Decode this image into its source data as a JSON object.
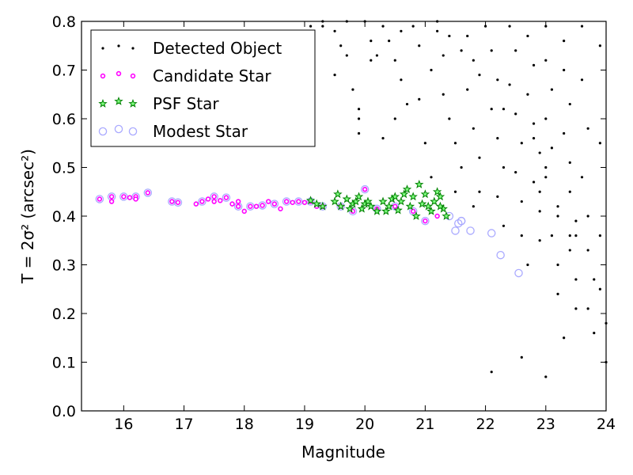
{
  "chart_data": {
    "type": "scatter",
    "xlabel": "Magnitude",
    "ylabel": "T = 2σ² (arcsec²)",
    "xlim": [
      15.3,
      24
    ],
    "ylim": [
      0.0,
      0.8
    ],
    "xticks": [
      "16",
      "17",
      "18",
      "19",
      "20",
      "21",
      "22",
      "23",
      "24"
    ],
    "yticks": [
      "0.0",
      "0.1",
      "0.2",
      "0.3",
      "0.4",
      "0.5",
      "0.6",
      "0.7",
      "0.8"
    ],
    "grid": false,
    "legend_position": "top-left",
    "series": [
      {
        "name": "Detected Object",
        "marker": "dot",
        "color": "#000000",
        "points": [
          [
            19.1,
            0.79
          ],
          [
            19.3,
            0.79
          ],
          [
            19.5,
            0.78
          ],
          [
            19.6,
            0.75
          ],
          [
            19.7,
            0.73
          ],
          [
            19.5,
            0.69
          ],
          [
            19.8,
            0.66
          ],
          [
            19.9,
            0.62
          ],
          [
            19.9,
            0.6
          ],
          [
            19.9,
            0.57
          ],
          [
            20.1,
            0.72
          ],
          [
            20.2,
            0.73
          ],
          [
            20.1,
            0.76
          ],
          [
            20.3,
            0.79
          ],
          [
            20.4,
            0.76
          ],
          [
            20.5,
            0.72
          ],
          [
            20.6,
            0.78
          ],
          [
            20.8,
            0.79
          ],
          [
            20.9,
            0.75
          ],
          [
            20.6,
            0.68
          ],
          [
            20.7,
            0.63
          ],
          [
            20.5,
            0.6
          ],
          [
            20.3,
            0.56
          ],
          [
            20.9,
            0.64
          ],
          [
            21.0,
            0.55
          ],
          [
            21.1,
            0.48
          ],
          [
            21.1,
            0.7
          ],
          [
            21.2,
            0.78
          ],
          [
            21.3,
            0.73
          ],
          [
            21.3,
            0.65
          ],
          [
            21.4,
            0.6
          ],
          [
            21.5,
            0.55
          ],
          [
            21.6,
            0.5
          ],
          [
            21.5,
            0.45
          ],
          [
            21.7,
            0.77
          ],
          [
            21.8,
            0.72
          ],
          [
            21.7,
            0.66
          ],
          [
            21.8,
            0.58
          ],
          [
            21.9,
            0.52
          ],
          [
            21.9,
            0.45
          ],
          [
            21.8,
            0.42
          ],
          [
            22.0,
            0.79
          ],
          [
            22.1,
            0.74
          ],
          [
            22.2,
            0.68
          ],
          [
            22.1,
            0.62
          ],
          [
            22.2,
            0.56
          ],
          [
            22.3,
            0.5
          ],
          [
            22.2,
            0.44
          ],
          [
            22.3,
            0.38
          ],
          [
            22.1,
            0.08
          ],
          [
            22.4,
            0.79
          ],
          [
            22.5,
            0.74
          ],
          [
            22.4,
            0.67
          ],
          [
            22.5,
            0.61
          ],
          [
            22.6,
            0.55
          ],
          [
            22.5,
            0.49
          ],
          [
            22.6,
            0.43
          ],
          [
            22.6,
            0.36
          ],
          [
            22.7,
            0.3
          ],
          [
            22.6,
            0.11
          ],
          [
            22.7,
            0.77
          ],
          [
            22.8,
            0.71
          ],
          [
            22.7,
            0.65
          ],
          [
            22.8,
            0.59
          ],
          [
            22.9,
            0.53
          ],
          [
            22.8,
            0.47
          ],
          [
            22.9,
            0.41
          ],
          [
            22.9,
            0.35
          ],
          [
            23.0,
            0.79
          ],
          [
            23.0,
            0.72
          ],
          [
            23.1,
            0.66
          ],
          [
            23.0,
            0.6
          ],
          [
            23.1,
            0.54
          ],
          [
            23.0,
            0.48
          ],
          [
            23.2,
            0.42
          ],
          [
            23.1,
            0.36
          ],
          [
            23.2,
            0.3
          ],
          [
            23.2,
            0.24
          ],
          [
            23.0,
            0.07
          ],
          [
            23.3,
            0.76
          ],
          [
            23.3,
            0.7
          ],
          [
            23.4,
            0.63
          ],
          [
            23.3,
            0.57
          ],
          [
            23.4,
            0.51
          ],
          [
            23.4,
            0.45
          ],
          [
            23.5,
            0.39
          ],
          [
            23.4,
            0.33
          ],
          [
            23.5,
            0.27
          ],
          [
            23.5,
            0.21
          ],
          [
            23.3,
            0.15
          ],
          [
            23.6,
            0.79
          ],
          [
            23.6,
            0.68
          ],
          [
            23.7,
            0.58
          ],
          [
            23.6,
            0.48
          ],
          [
            23.7,
            0.4
          ],
          [
            23.7,
            0.33
          ],
          [
            23.8,
            0.27
          ],
          [
            23.7,
            0.21
          ],
          [
            23.8,
            0.16
          ],
          [
            23.9,
            0.75
          ],
          [
            23.9,
            0.55
          ],
          [
            23.9,
            0.36
          ],
          [
            23.9,
            0.25
          ],
          [
            24.0,
            0.18
          ],
          [
            24.0,
            0.1
          ],
          [
            23.5,
            0.36
          ],
          [
            23.4,
            0.36
          ],
          [
            23.2,
            0.4
          ],
          [
            22.9,
            0.45
          ],
          [
            23.0,
            0.5
          ],
          [
            22.8,
            0.56
          ],
          [
            22.3,
            0.62
          ],
          [
            21.9,
            0.69
          ],
          [
            21.6,
            0.74
          ],
          [
            21.4,
            0.77
          ],
          [
            21.2,
            0.8
          ],
          [
            20.0,
            0.8
          ],
          [
            19.7,
            0.8
          ],
          [
            19.3,
            0.8
          ]
        ]
      },
      {
        "name": "Candidate Star",
        "marker": "small-circle",
        "color": "#ff00ff",
        "points": [
          [
            15.6,
            0.435
          ],
          [
            15.8,
            0.44
          ],
          [
            15.8,
            0.43
          ],
          [
            16.0,
            0.44
          ],
          [
            16.1,
            0.438
          ],
          [
            16.2,
            0.44
          ],
          [
            16.2,
            0.435
          ],
          [
            16.4,
            0.448
          ],
          [
            16.8,
            0.43
          ],
          [
            16.9,
            0.428
          ],
          [
            17.2,
            0.425
          ],
          [
            17.3,
            0.43
          ],
          [
            17.4,
            0.435
          ],
          [
            17.5,
            0.44
          ],
          [
            17.5,
            0.43
          ],
          [
            17.6,
            0.432
          ],
          [
            17.7,
            0.438
          ],
          [
            17.8,
            0.425
          ],
          [
            17.9,
            0.43
          ],
          [
            17.9,
            0.42
          ],
          [
            18.0,
            0.41
          ],
          [
            18.1,
            0.42
          ],
          [
            18.2,
            0.42
          ],
          [
            18.3,
            0.422
          ],
          [
            18.4,
            0.43
          ],
          [
            18.5,
            0.425
          ],
          [
            18.6,
            0.415
          ],
          [
            18.7,
            0.43
          ],
          [
            18.8,
            0.428
          ],
          [
            18.9,
            0.43
          ],
          [
            19.0,
            0.428
          ],
          [
            19.1,
            0.43
          ],
          [
            19.2,
            0.42
          ],
          [
            19.3,
            0.42
          ],
          [
            19.6,
            0.42
          ],
          [
            19.8,
            0.41
          ],
          [
            20.0,
            0.455
          ],
          [
            20.2,
            0.415
          ],
          [
            20.5,
            0.42
          ],
          [
            20.8,
            0.41
          ],
          [
            21.0,
            0.39
          ],
          [
            21.2,
            0.4
          ]
        ]
      },
      {
        "name": "PSF Star",
        "marker": "star",
        "color": "#008000",
        "points": [
          [
            19.1,
            0.432
          ],
          [
            19.2,
            0.425
          ],
          [
            19.3,
            0.42
          ],
          [
            19.5,
            0.43
          ],
          [
            19.55,
            0.445
          ],
          [
            19.6,
            0.42
          ],
          [
            19.7,
            0.435
          ],
          [
            19.75,
            0.415
          ],
          [
            19.8,
            0.425
          ],
          [
            19.85,
            0.43
          ],
          [
            19.9,
            0.44
          ],
          [
            19.95,
            0.415
          ],
          [
            20.0,
            0.425
          ],
          [
            20.05,
            0.43
          ],
          [
            20.1,
            0.42
          ],
          [
            20.2,
            0.41
          ],
          [
            20.3,
            0.43
          ],
          [
            20.35,
            0.41
          ],
          [
            20.4,
            0.42
          ],
          [
            20.45,
            0.435
          ],
          [
            20.5,
            0.44
          ],
          [
            20.55,
            0.412
          ],
          [
            20.6,
            0.43
          ],
          [
            20.65,
            0.445
          ],
          [
            20.7,
            0.455
          ],
          [
            20.75,
            0.42
          ],
          [
            20.8,
            0.44
          ],
          [
            20.85,
            0.4
          ],
          [
            20.9,
            0.465
          ],
          [
            20.95,
            0.425
          ],
          [
            21.0,
            0.445
          ],
          [
            21.05,
            0.42
          ],
          [
            21.1,
            0.41
          ],
          [
            21.15,
            0.43
          ],
          [
            21.2,
            0.45
          ],
          [
            21.25,
            0.44
          ],
          [
            21.3,
            0.415
          ],
          [
            21.35,
            0.4
          ],
          [
            21.25,
            0.42
          ]
        ]
      },
      {
        "name": "Modest Star",
        "marker": "open-circle",
        "color": "#aaaaff",
        "points": [
          [
            15.6,
            0.435
          ],
          [
            15.8,
            0.44
          ],
          [
            16.0,
            0.44
          ],
          [
            16.2,
            0.44
          ],
          [
            16.4,
            0.448
          ],
          [
            16.8,
            0.43
          ],
          [
            16.9,
            0.428
          ],
          [
            17.3,
            0.43
          ],
          [
            17.5,
            0.44
          ],
          [
            17.7,
            0.438
          ],
          [
            17.9,
            0.42
          ],
          [
            18.1,
            0.42
          ],
          [
            18.3,
            0.422
          ],
          [
            18.5,
            0.425
          ],
          [
            18.7,
            0.43
          ],
          [
            18.9,
            0.43
          ],
          [
            19.1,
            0.43
          ],
          [
            19.3,
            0.42
          ],
          [
            19.6,
            0.42
          ],
          [
            19.8,
            0.41
          ],
          [
            20.0,
            0.455
          ],
          [
            20.2,
            0.415
          ],
          [
            20.5,
            0.42
          ],
          [
            20.8,
            0.41
          ],
          [
            21.0,
            0.39
          ],
          [
            21.5,
            0.37
          ],
          [
            21.55,
            0.385
          ],
          [
            21.6,
            0.39
          ],
          [
            21.75,
            0.37
          ],
          [
            22.1,
            0.365
          ],
          [
            22.25,
            0.32
          ],
          [
            22.55,
            0.283
          ],
          [
            21.6,
            0.39
          ],
          [
            21.4,
            0.4
          ]
        ]
      }
    ]
  }
}
